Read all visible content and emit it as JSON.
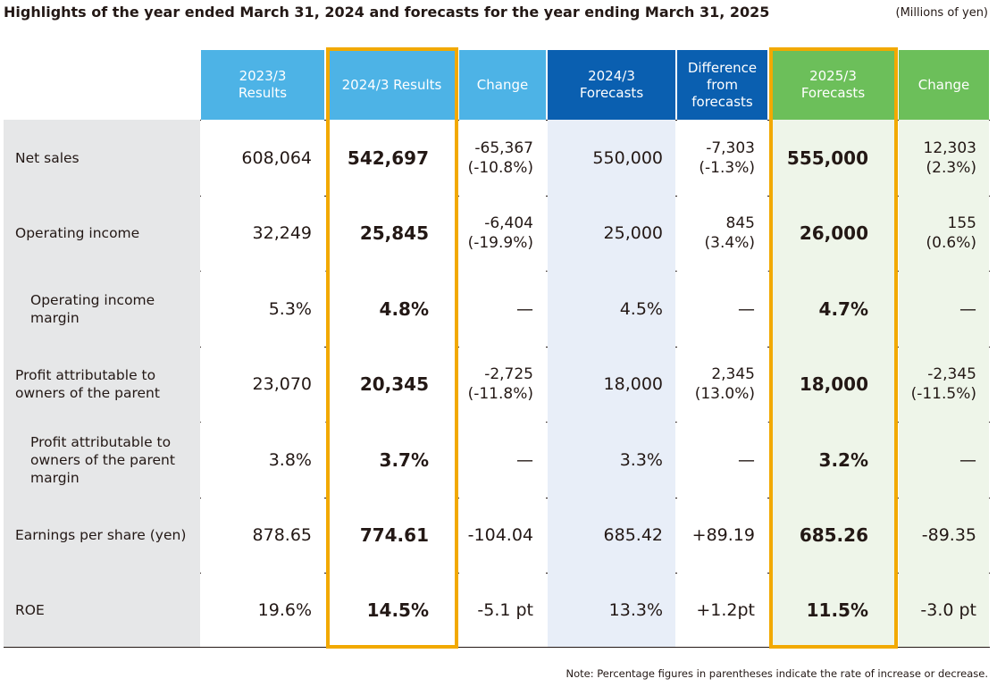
{
  "header": {
    "title": "Highlights of the year ended March 31, 2024 and forecasts for the year ending March 31, 2025",
    "unit": "(Millions of yen)"
  },
  "colors": {
    "light_blue": "#4db3e6",
    "dark_blue": "#0a5fb0",
    "green": "#6cbf5a",
    "label_bg": "#e6e7e8",
    "forecast_bg": "#e8eef8",
    "green_bg": "#eef5e9",
    "highlight_frame": "#f2a900"
  },
  "columns": [
    "2023/3\nResults",
    "2024/3 Results",
    "Change",
    "2024/3\nForecasts",
    "Difference\nfrom\nforecasts",
    "2025/3\nForecasts",
    "Change"
  ],
  "rows": [
    {
      "label": "Net sales",
      "cells": [
        "608,064",
        "542,697",
        "-65,367\n(-10.8%)",
        "550,000",
        "-7,303\n(-1.3%)",
        "555,000",
        "12,303\n(2.3%)"
      ]
    },
    {
      "label": "Operating income",
      "cells": [
        "32,249",
        "25,845",
        "-6,404\n(-19.9%)",
        "25,000",
        "845\n(3.4%)",
        "26,000",
        "155\n(0.6%)"
      ]
    },
    {
      "label": "Operating income\nmargin",
      "cells": [
        "5.3%",
        "4.8%",
        "—",
        "4.5%",
        "—",
        "4.7%",
        "—"
      ]
    },
    {
      "label": "Profit attributable to\nowners of the parent",
      "cells": [
        "23,070",
        "20,345",
        "-2,725\n(-11.8%)",
        "18,000",
        "2,345\n(13.0%)",
        "18,000",
        "-2,345\n(-11.5%)"
      ]
    },
    {
      "label": "Profit attributable to\nowners of the parent\nmargin",
      "cells": [
        "3.8%",
        "3.7%",
        "—",
        "3.3%",
        "—",
        "3.2%",
        "—"
      ]
    },
    {
      "label": "Earnings per share (yen)",
      "cells": [
        "878.65",
        "774.61",
        "-104.04",
        "685.42",
        "+89.19",
        "685.26",
        "-89.35"
      ]
    },
    {
      "label": "ROE",
      "cells": [
        "19.6%",
        "14.5%",
        "-5.1 pt",
        "13.3%",
        "+1.2pt",
        "11.5%",
        "-3.0 pt"
      ]
    }
  ],
  "footer": {
    "note": "Note: Percentage figures in parentheses indicate the rate of increase or decrease."
  }
}
